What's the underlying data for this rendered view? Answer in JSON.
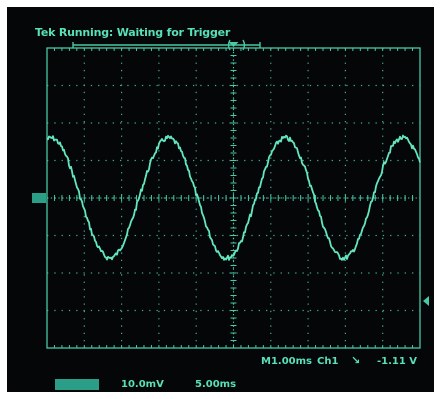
{
  "status": {
    "text": "Tek Running: Waiting for Trigger"
  },
  "readout": {
    "timebase": "M1.00ms",
    "channel": "Ch1",
    "trigger_slope_icon": "falling-edge-icon",
    "trigger_level": "-1.11 V"
  },
  "bottom": {
    "channel_badge": "",
    "volts_per_div": "10.0mV",
    "time_per_div": "5.00ms"
  },
  "markers": {
    "ground_marker": ""
  },
  "colors": {
    "trace": "#63e6c0",
    "grid": "#49c9a6",
    "background": "#050607"
  }
}
